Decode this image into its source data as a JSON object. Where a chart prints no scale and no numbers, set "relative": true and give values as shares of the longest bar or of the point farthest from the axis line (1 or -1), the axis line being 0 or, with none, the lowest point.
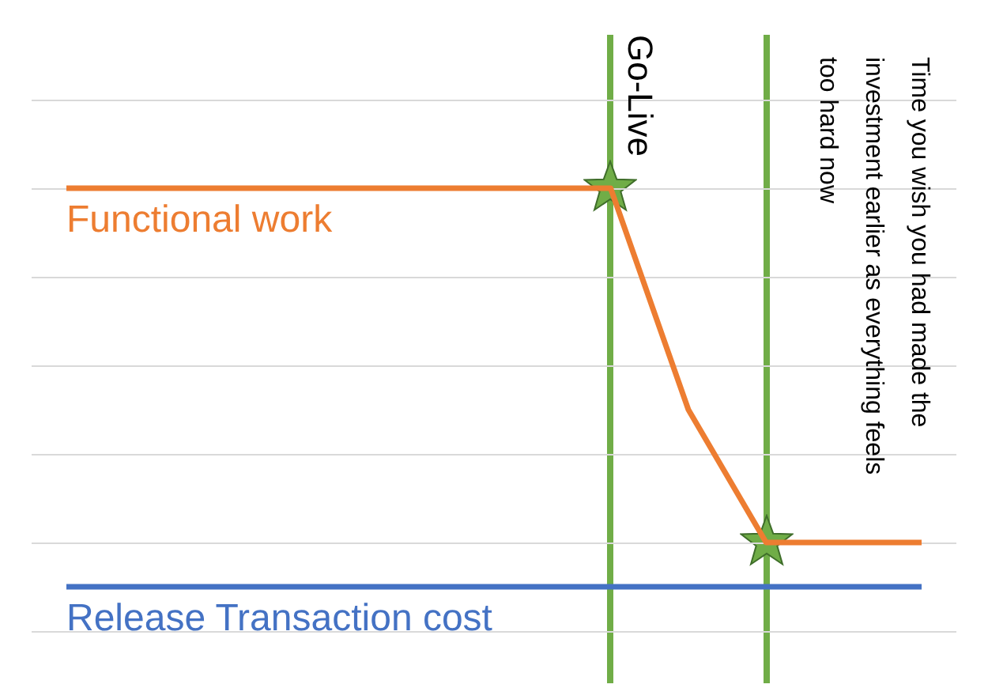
{
  "chart_data": {
    "type": "line",
    "relative": true,
    "grid": "y",
    "legend": false,
    "line_style": "solid",
    "categories": [
      null,
      null,
      null,
      null,
      null,
      null,
      null,
      null,
      null,
      null,
      null,
      null
    ],
    "series": [
      {
        "name": "Functional work",
        "color": "#ed7d31",
        "values": [
          1,
          1,
          1,
          1,
          1,
          1,
          1,
          1,
          0.5,
          0.2,
          0.2,
          0.2
        ]
      },
      {
        "name": "Release Transaction cost",
        "color": "#4472c4",
        "values": [
          0.1,
          0.1,
          0.1,
          0.1,
          0.1,
          0.1,
          0.1,
          0.1,
          0.1,
          0.1,
          0.1,
          0.1
        ]
      }
    ],
    "annotations": [
      "Go-Live",
      "Time you wish you had made the investment earlier as everything feels too hard now"
    ]
  }
}
